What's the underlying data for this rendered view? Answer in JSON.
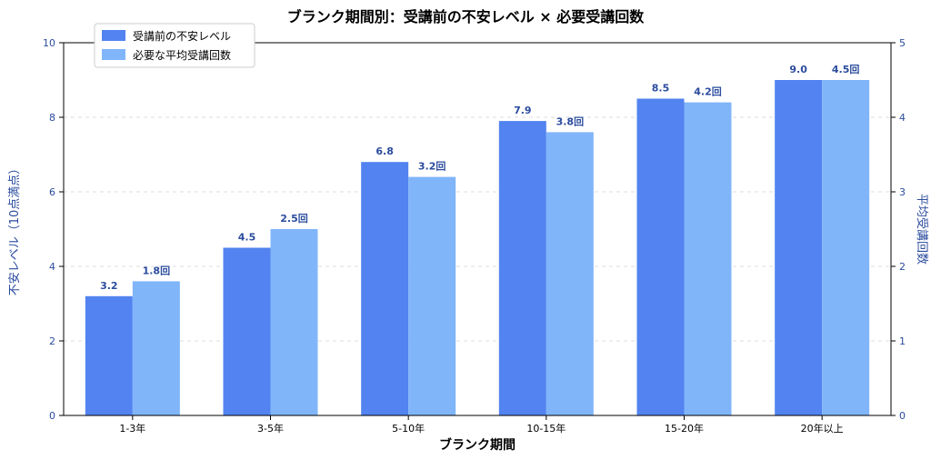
{
  "chart_data": {
    "type": "bar",
    "title": "ブランク期間別：受講前の不安レベル × 必要受講回数",
    "xlabel": "ブランク期間",
    "ylabel_left": "不安レベル（10点満点）",
    "ylabel_right": "平均受講回数",
    "categories": [
      "1-3年",
      "3-5年",
      "5-10年",
      "10-15年",
      "15-20年",
      "20年以上"
    ],
    "ylim_left": [
      0,
      10
    ],
    "ylim_right": [
      0,
      5
    ],
    "yticks_left": [
      "0",
      "2",
      "4",
      "6",
      "8",
      "10"
    ],
    "yticks_right": [
      "0",
      "1",
      "2",
      "3",
      "4",
      "5"
    ],
    "grid": "horizontal-dashed",
    "legend_position": "top-left",
    "series": [
      {
        "name": "受講前の不安レベル",
        "axis": "left",
        "color": "#5283f0",
        "values": [
          3.2,
          4.5,
          6.8,
          7.9,
          8.5,
          9.0
        ],
        "labels": [
          "3.2",
          "4.5",
          "6.8",
          "7.9",
          "8.5",
          "9.0"
        ]
      },
      {
        "name": "必要な平均受講回数",
        "axis": "right",
        "color": "#80b5fa",
        "values": [
          1.8,
          2.5,
          3.2,
          3.8,
          4.2,
          4.5
        ],
        "labels": [
          "1.8回",
          "2.5回",
          "3.2回",
          "3.8回",
          "4.2回",
          "4.5回"
        ]
      }
    ],
    "colors": {
      "axis_text": "#2b4c9e",
      "label_text": "#2b4c9e",
      "grid": "#dddddd"
    }
  }
}
